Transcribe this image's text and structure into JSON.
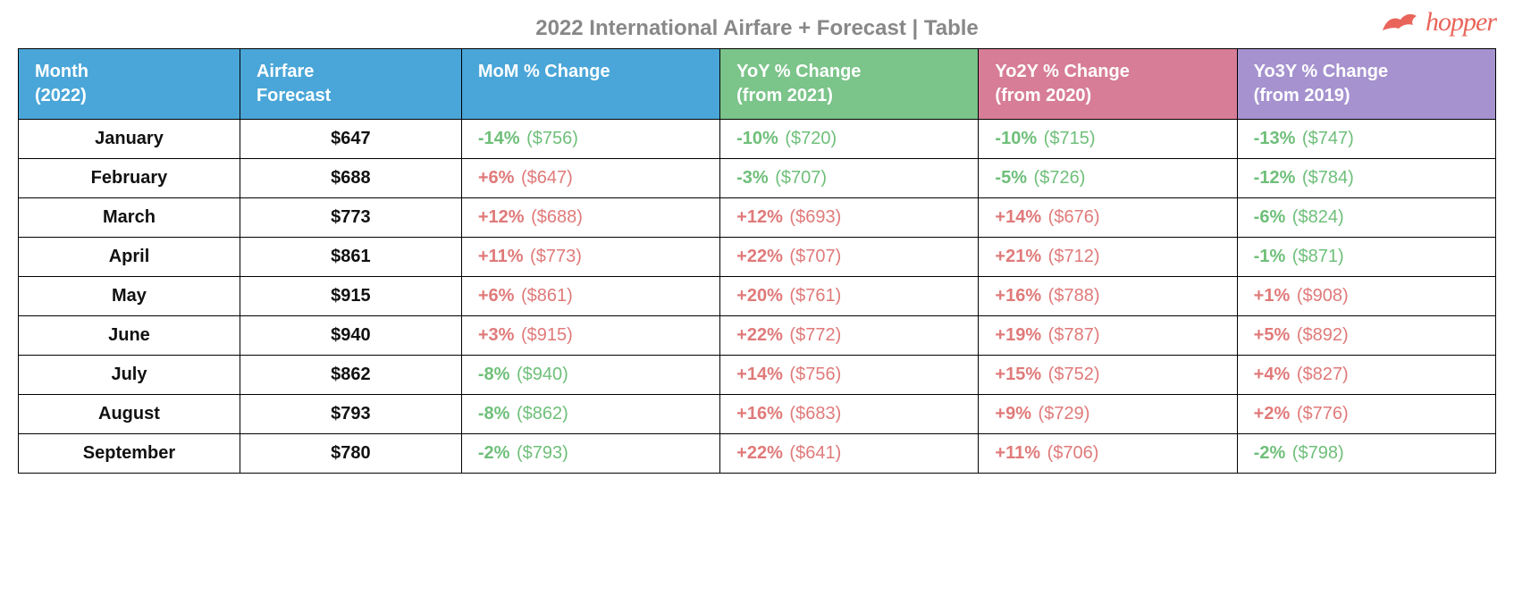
{
  "title": "2022 International Airfare + Forecast | Table",
  "logo": {
    "text": "hopper",
    "color": "#e9655b"
  },
  "table": {
    "structure_type": "table",
    "border_color": "#000000",
    "background_color": "#ffffff",
    "header_text_color": "#ffffff",
    "header_fontsize": 20,
    "cell_fontsize": 20,
    "title_fontsize": 24,
    "title_color": "#888888",
    "positive_color": "#e07a7a",
    "negative_color": "#6fbf7a",
    "label_text_color": "#111111",
    "column_widths_pct": [
      15,
      15,
      17.5,
      17.5,
      17.5,
      17.5
    ],
    "columns": [
      {
        "key": "month",
        "label_l1": "Month",
        "label_l2": "(2022)",
        "bg": "#4aa6d8"
      },
      {
        "key": "forecast",
        "label_l1": "Airfare",
        "label_l2": "Forecast",
        "bg": "#4aa6d8"
      },
      {
        "key": "mom",
        "label_l1": "MoM % Change",
        "label_l2": "",
        "bg": "#4aa6d8"
      },
      {
        "key": "yoy",
        "label_l1": "YoY % Change",
        "label_l2": "(from 2021)",
        "bg": "#7bc48a"
      },
      {
        "key": "yo2y",
        "label_l1": "Yo2Y % Change",
        "label_l2": "(from 2020)",
        "bg": "#d77d97"
      },
      {
        "key": "yo3y",
        "label_l1": "Yo3Y % Change",
        "label_l2": "(from 2019)",
        "bg": "#a592cf"
      }
    ],
    "rows": [
      {
        "month": "January",
        "forecast": "$647",
        "mom": {
          "pct": "-14%",
          "ref": "($756)",
          "dir": "neg"
        },
        "yoy": {
          "pct": "-10%",
          "ref": "($720)",
          "dir": "neg"
        },
        "yo2y": {
          "pct": "-10%",
          "ref": "($715)",
          "dir": "neg"
        },
        "yo3y": {
          "pct": "-13%",
          "ref": "($747)",
          "dir": "neg"
        }
      },
      {
        "month": "February",
        "forecast": "$688",
        "mom": {
          "pct": "+6%",
          "ref": "($647)",
          "dir": "pos"
        },
        "yoy": {
          "pct": "-3%",
          "ref": "($707)",
          "dir": "neg"
        },
        "yo2y": {
          "pct": "-5%",
          "ref": "($726)",
          "dir": "neg"
        },
        "yo3y": {
          "pct": "-12%",
          "ref": "($784)",
          "dir": "neg"
        }
      },
      {
        "month": "March",
        "forecast": "$773",
        "mom": {
          "pct": "+12%",
          "ref": "($688)",
          "dir": "pos"
        },
        "yoy": {
          "pct": "+12%",
          "ref": "($693)",
          "dir": "pos"
        },
        "yo2y": {
          "pct": "+14%",
          "ref": "($676)",
          "dir": "pos"
        },
        "yo3y": {
          "pct": "-6%",
          "ref": "($824)",
          "dir": "neg"
        }
      },
      {
        "month": "April",
        "forecast": "$861",
        "mom": {
          "pct": "+11%",
          "ref": "($773)",
          "dir": "pos"
        },
        "yoy": {
          "pct": "+22%",
          "ref": "($707)",
          "dir": "pos"
        },
        "yo2y": {
          "pct": "+21%",
          "ref": "($712)",
          "dir": "pos"
        },
        "yo3y": {
          "pct": "-1%",
          "ref": "($871)",
          "dir": "neg"
        }
      },
      {
        "month": "May",
        "forecast": "$915",
        "mom": {
          "pct": "+6%",
          "ref": "($861)",
          "dir": "pos"
        },
        "yoy": {
          "pct": "+20%",
          "ref": "($761)",
          "dir": "pos"
        },
        "yo2y": {
          "pct": "+16%",
          "ref": "($788)",
          "dir": "pos"
        },
        "yo3y": {
          "pct": "+1%",
          "ref": "($908)",
          "dir": "pos"
        }
      },
      {
        "month": "June",
        "forecast": "$940",
        "mom": {
          "pct": "+3%",
          "ref": "($915)",
          "dir": "pos"
        },
        "yoy": {
          "pct": "+22%",
          "ref": "($772)",
          "dir": "pos"
        },
        "yo2y": {
          "pct": "+19%",
          "ref": "($787)",
          "dir": "pos"
        },
        "yo3y": {
          "pct": "+5%",
          "ref": "($892)",
          "dir": "pos"
        }
      },
      {
        "month": "July",
        "forecast": "$862",
        "mom": {
          "pct": "-8%",
          "ref": "($940)",
          "dir": "neg"
        },
        "yoy": {
          "pct": "+14%",
          "ref": "($756)",
          "dir": "pos"
        },
        "yo2y": {
          "pct": "+15%",
          "ref": "($752)",
          "dir": "pos"
        },
        "yo3y": {
          "pct": "+4%",
          "ref": "($827)",
          "dir": "pos"
        }
      },
      {
        "month": "August",
        "forecast": "$793",
        "mom": {
          "pct": "-8%",
          "ref": "($862)",
          "dir": "neg"
        },
        "yoy": {
          "pct": "+16%",
          "ref": "($683)",
          "dir": "pos"
        },
        "yo2y": {
          "pct": "+9%",
          "ref": "($729)",
          "dir": "pos"
        },
        "yo3y": {
          "pct": "+2%",
          "ref": "($776)",
          "dir": "pos"
        }
      },
      {
        "month": "September",
        "forecast": "$780",
        "mom": {
          "pct": "-2%",
          "ref": "($793)",
          "dir": "neg"
        },
        "yoy": {
          "pct": "+22%",
          "ref": "($641)",
          "dir": "pos"
        },
        "yo2y": {
          "pct": "+11%",
          "ref": "($706)",
          "dir": "pos"
        },
        "yo3y": {
          "pct": "-2%",
          "ref": "($798)",
          "dir": "neg"
        }
      }
    ]
  }
}
